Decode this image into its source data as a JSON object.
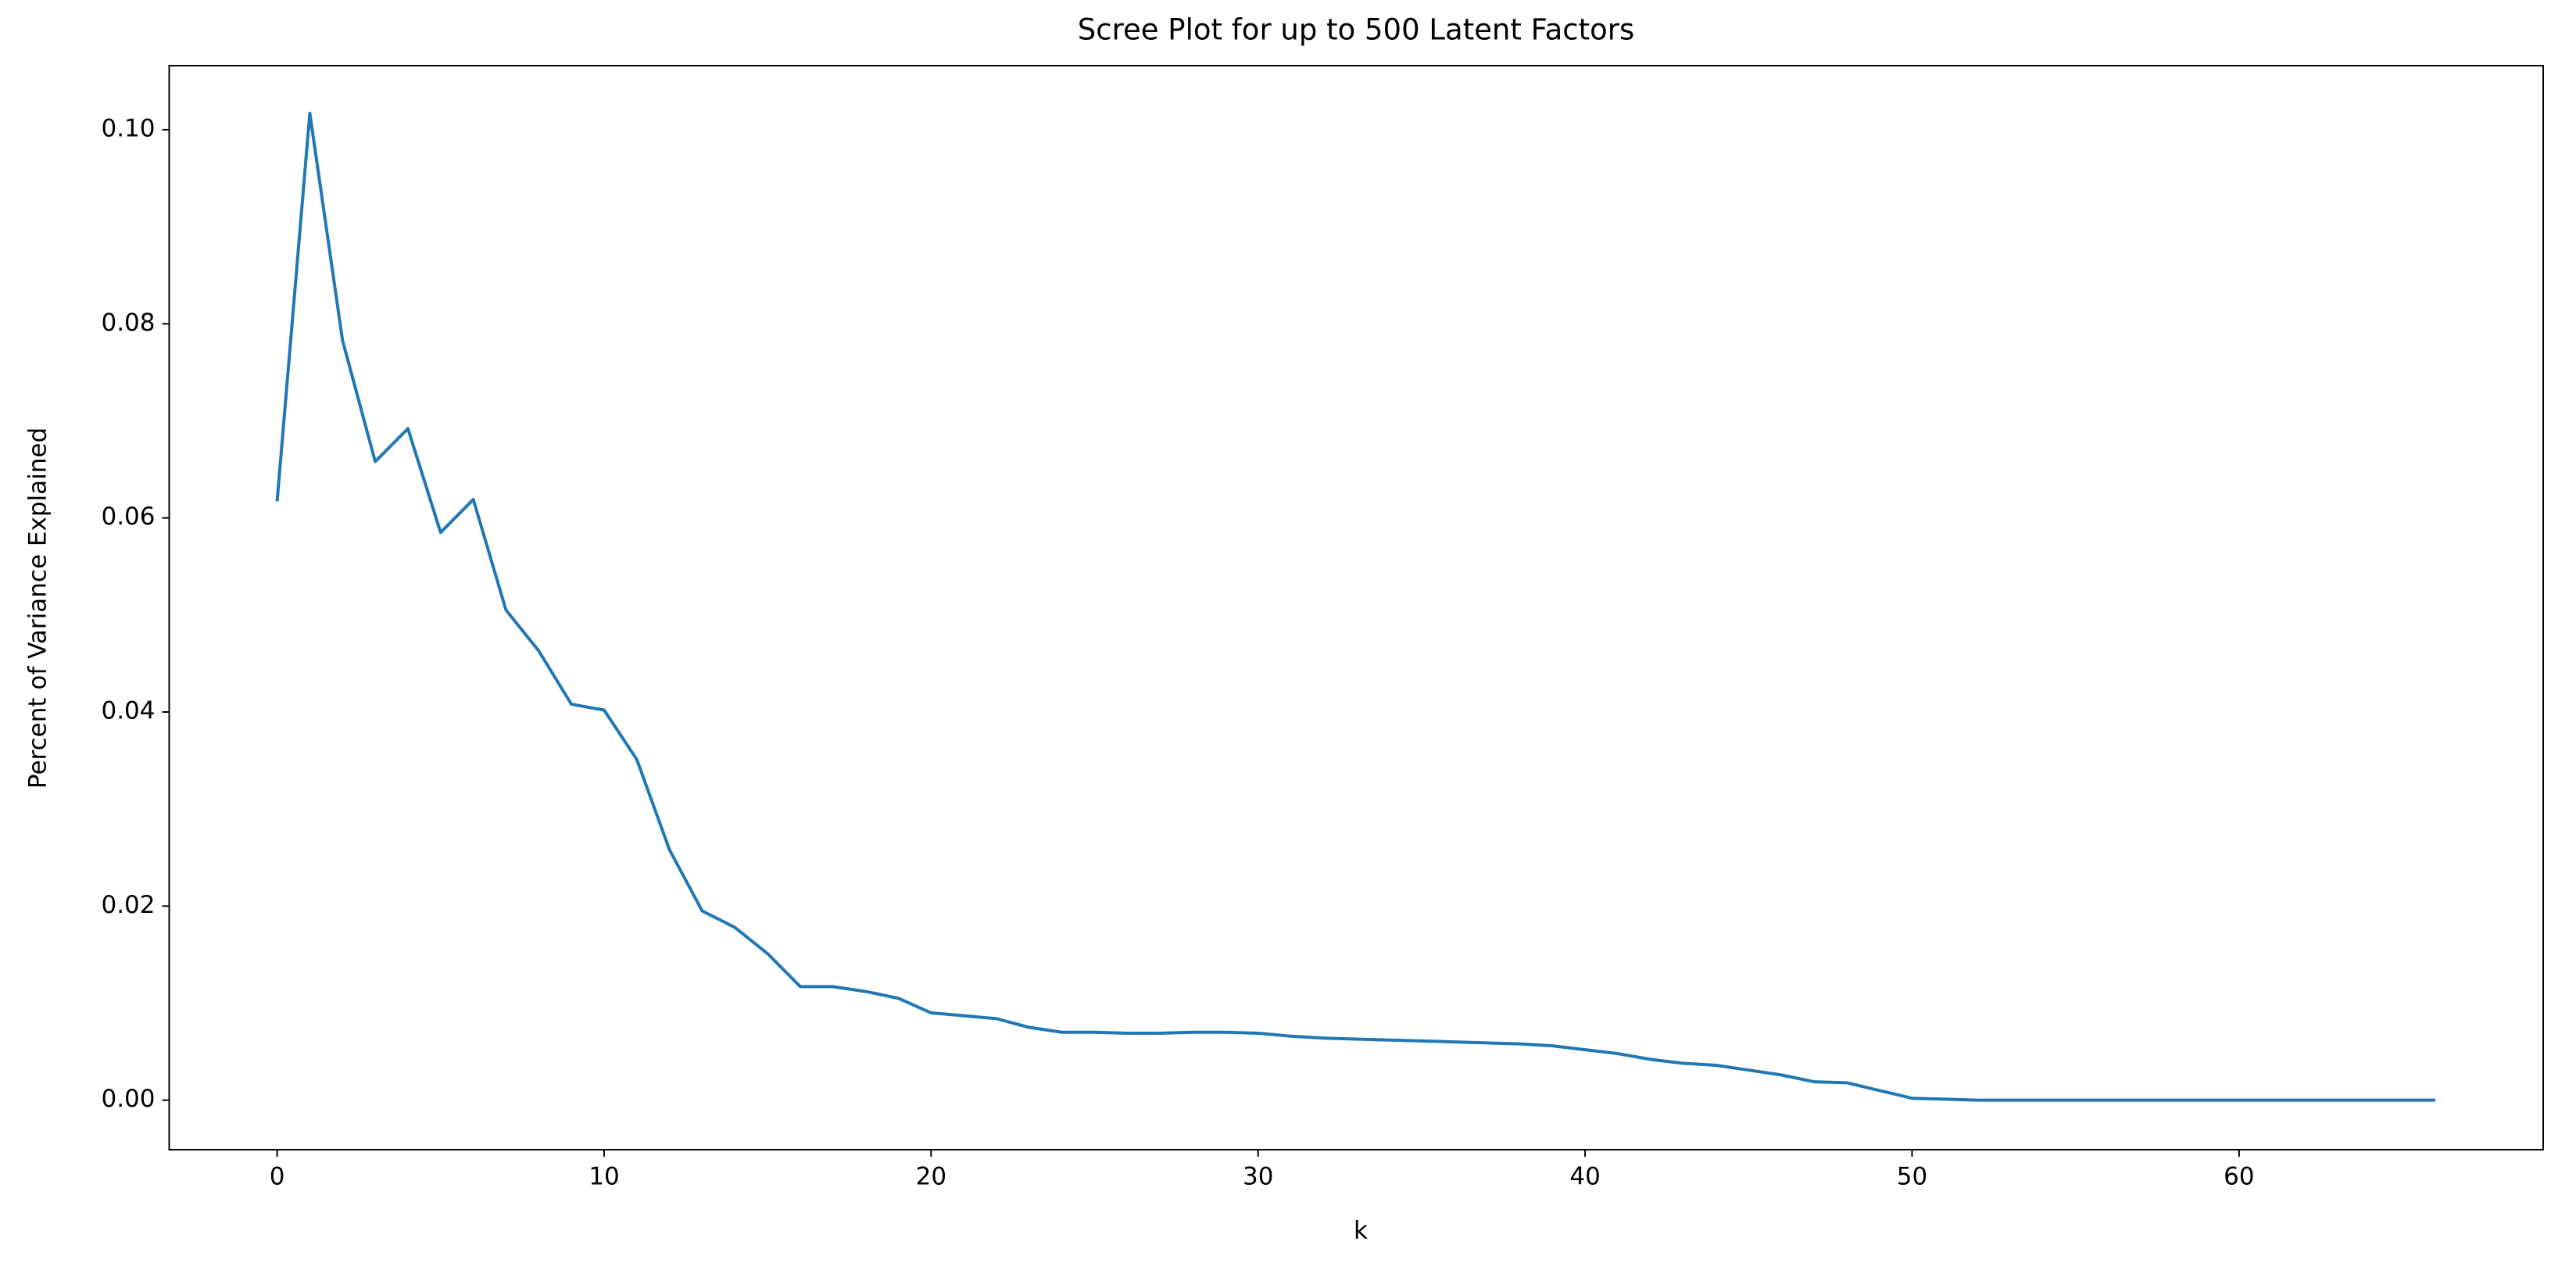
{
  "chart_data": {
    "type": "line",
    "title": "Scree Plot for up to 500 Latent Factors",
    "x_label": "k",
    "y_label": "Percent of Variance Explained",
    "x": [
      0,
      1,
      2,
      3,
      4,
      5,
      6,
      7,
      8,
      9,
      10,
      11,
      12,
      13,
      14,
      15,
      16,
      17,
      18,
      19,
      20,
      21,
      22,
      23,
      24,
      25,
      26,
      27,
      28,
      29,
      30,
      31,
      32,
      33,
      34,
      35,
      36,
      37,
      38,
      39,
      40,
      41,
      42,
      43,
      44,
      45,
      46,
      47,
      48,
      49,
      50,
      51,
      52,
      53,
      54,
      55,
      56,
      57,
      58,
      59,
      60,
      61,
      62,
      63,
      64,
      65,
      66
    ],
    "series": [
      {
        "color": "#1f77b4",
        "values": [
          0.0617,
          0.1017,
          0.0783,
          0.0658,
          0.0692,
          0.0585,
          0.0619,
          0.0505,
          0.0463,
          0.0408,
          0.0402,
          0.0351,
          0.0258,
          0.0195,
          0.0178,
          0.0151,
          0.0117,
          0.0117,
          0.0112,
          0.0105,
          0.009,
          0.0087,
          0.0084,
          0.0075,
          0.007,
          0.007,
          0.0069,
          0.0069,
          0.007,
          0.007,
          0.0069,
          0.0066,
          0.0064,
          0.0063,
          0.0062,
          0.0061,
          0.006,
          0.0059,
          0.0058,
          0.0056,
          0.0052,
          0.0048,
          0.0042,
          0.0038,
          0.0036,
          0.0031,
          0.0026,
          0.0019,
          0.0018,
          0.001,
          0.0002,
          0.0001,
          0,
          0,
          0,
          0,
          0,
          0,
          0,
          0,
          0,
          0,
          0,
          0,
          0,
          0,
          0
        ]
      }
    ],
    "xlim": [
      -3.3,
      69.3
    ],
    "ylim": [
      -0.0051,
      0.1066
    ],
    "xticks": [
      0,
      10,
      20,
      30,
      40,
      50,
      60
    ],
    "yticks": [
      {
        "value": 0,
        "label": "0.00"
      },
      {
        "value": 0.02,
        "label": "0.02"
      },
      {
        "value": 0.04,
        "label": "0.04"
      },
      {
        "value": 0.06,
        "label": "0.06"
      },
      {
        "value": 0.08,
        "label": "0.08"
      },
      {
        "value": 0.1,
        "label": "0.10"
      }
    ],
    "grid": false
  }
}
